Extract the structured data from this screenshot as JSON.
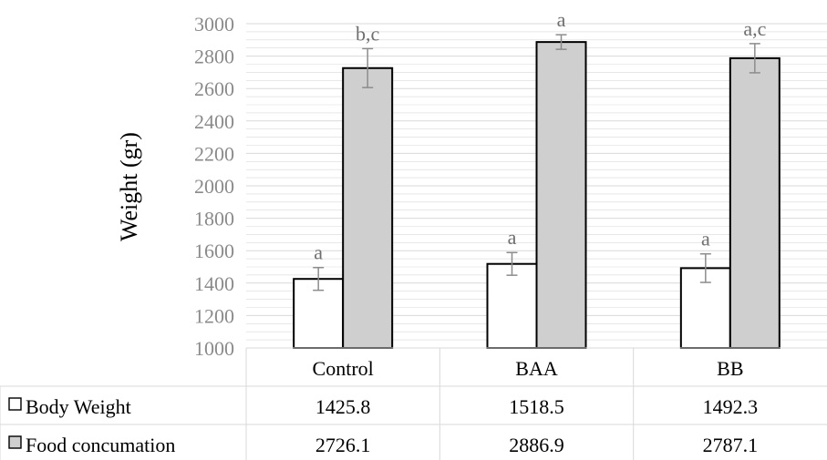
{
  "chart_data": {
    "type": "bar",
    "title": "",
    "xlabel": "",
    "ylabel": "Weight (gr)",
    "ylim": [
      1000,
      3000
    ],
    "yticks": [
      1000,
      1200,
      1400,
      1600,
      1800,
      2000,
      2200,
      2400,
      2600,
      2800,
      3000
    ],
    "grid": true,
    "categories": [
      "Control",
      "BAA",
      "BB"
    ],
    "series": [
      {
        "name": "Body Weight",
        "fill": "#ffffff",
        "values": [
          1425.8,
          1518.5,
          1492.3
        ],
        "error": [
          70,
          70,
          88
        ],
        "labels": [
          "a",
          "a",
          "a"
        ],
        "value_labels": [
          "1425.8",
          "1518.5",
          "1492.3"
        ]
      },
      {
        "name": "Food concumation",
        "fill": "#d0cfcf",
        "values": [
          2726.1,
          2886.9,
          2787.1
        ],
        "error": [
          120,
          45,
          90
        ],
        "labels": [
          "b,c",
          "a",
          "a,c"
        ],
        "value_labels": [
          "2726.1",
          "2886.9",
          "2787.1"
        ]
      }
    ],
    "legend_position": "data table"
  },
  "colors": {
    "bar_outline": "#000000",
    "error_bar": "#8c8c8c",
    "grid": "#d9d9d9",
    "table_line": "#d9d9d9"
  }
}
